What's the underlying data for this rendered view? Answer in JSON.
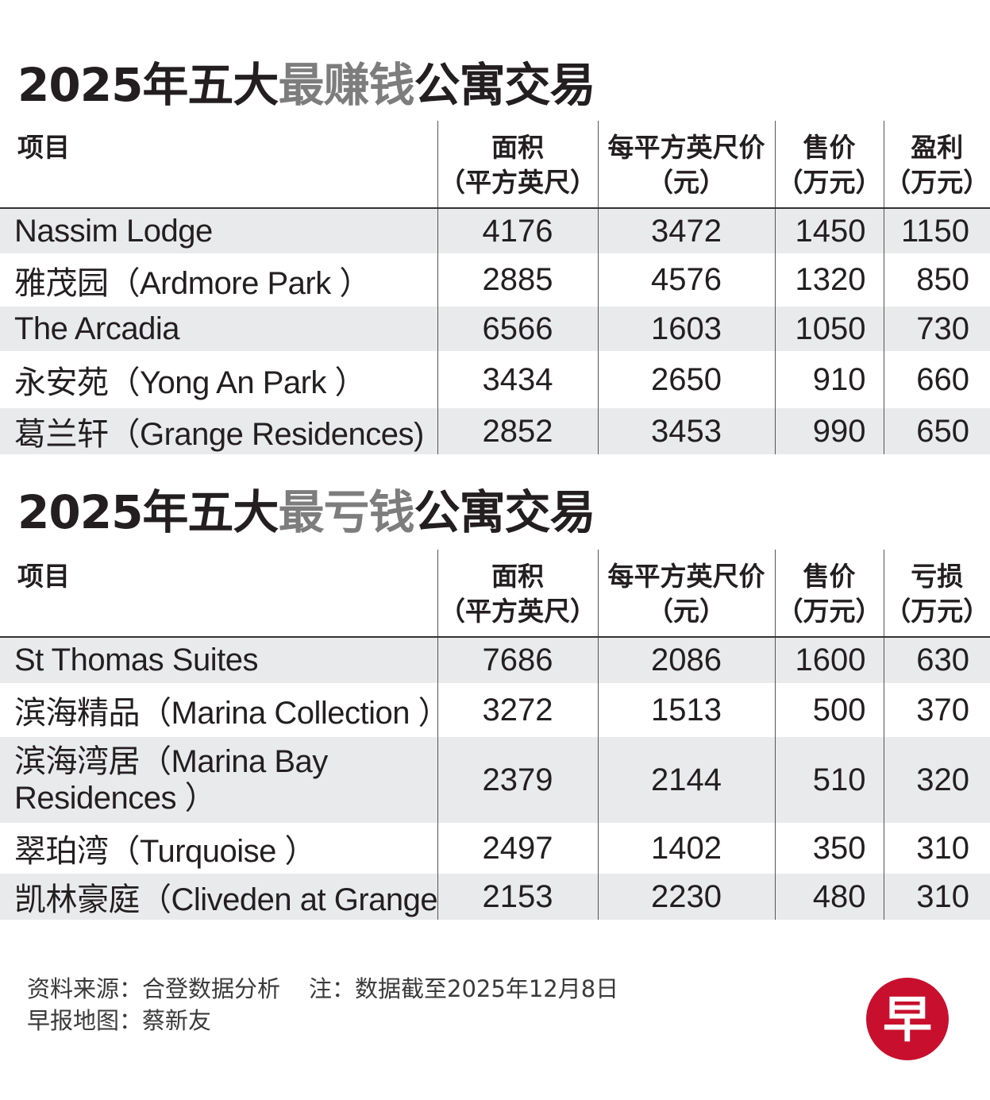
{
  "profit_section": {
    "title_pre": "2025年五大",
    "title_hl": "最赚钱",
    "title_post": "公寓交易",
    "headers": {
      "project": "项目",
      "area_1": "面积",
      "area_2": "（平方英尺）",
      "psf_1": "每平方英尺价",
      "psf_2": "（元）",
      "price_1": "售价",
      "price_2": "（万元）",
      "result_1": "盈利",
      "result_2": "（万元）"
    },
    "rows": [
      {
        "name": "Nassim Lodge",
        "area": "4176",
        "psf": "3472",
        "price": "1450",
        "result": "1150"
      },
      {
        "name": "雅茂园（Ardmore Park ）",
        "area": "2885",
        "psf": "4576",
        "price": "1320",
        "result": "850"
      },
      {
        "name": "The Arcadia",
        "area": "6566",
        "psf": "1603",
        "price": "1050",
        "result": "730"
      },
      {
        "name": "永安苑（Yong An Park ）",
        "area": "3434",
        "psf": "2650",
        "price": "910",
        "result": "660"
      },
      {
        "name": "葛兰轩（Grange Residences)",
        "area": "2852",
        "psf": "3453",
        "price": "990",
        "result": "650"
      }
    ]
  },
  "loss_section": {
    "title_pre": "2025年五大",
    "title_hl": "最亏钱",
    "title_post": "公寓交易",
    "headers": {
      "project": "项目",
      "area_1": "面积",
      "area_2": "（平方英尺）",
      "psf_1": "每平方英尺价",
      "psf_2": "（元）",
      "price_1": "售价",
      "price_2": "（万元）",
      "result_1": "亏损",
      "result_2": "（万元）"
    },
    "rows": [
      {
        "name": "St Thomas Suites",
        "area": "7686",
        "psf": "2086",
        "price": "1600",
        "result": "630"
      },
      {
        "name": "滨海精品（Marina Collection ）",
        "area": "3272",
        "psf": "1513",
        "price": "500",
        "result": "370"
      },
      {
        "name": "滨海湾居（Marina Bay Residences ）",
        "area": "2379",
        "psf": "2144",
        "price": "510",
        "result": "320"
      },
      {
        "name": "翠珀湾（Turquoise ）",
        "area": "2497",
        "psf": "1402",
        "price": "350",
        "result": "310"
      },
      {
        "name": "凯林豪庭（Cliveden at Grange ）",
        "area": "2153",
        "psf": "2230",
        "price": "480",
        "result": "310"
      }
    ]
  },
  "footer": {
    "source": "资料来源：合登数据分析",
    "note": "注：数据截至2025年12月8日",
    "credit": "早报地图：蔡新友"
  },
  "logo": {
    "char": "早",
    "color": "#c8102e"
  }
}
